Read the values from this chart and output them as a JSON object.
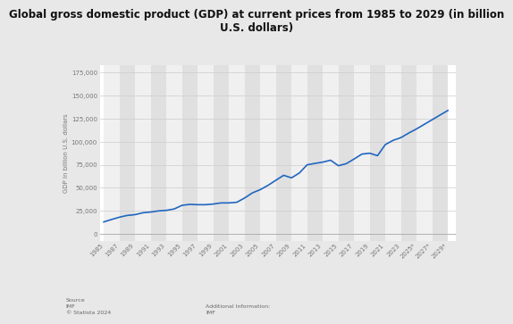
{
  "title": "Global gross domestic product (GDP) at current prices from 1985 to 2029 (in billion\nU.S. dollars)",
  "ylabel": "GDP in billion U.S. dollars",
  "years": [
    1985,
    1986,
    1987,
    1988,
    1989,
    1990,
    1991,
    1992,
    1993,
    1994,
    1995,
    1996,
    1997,
    1998,
    1999,
    2000,
    2001,
    2002,
    2003,
    2004,
    2005,
    2006,
    2007,
    2008,
    2009,
    2010,
    2011,
    2012,
    2013,
    2014,
    2015,
    2016,
    2017,
    2018,
    2019,
    2020,
    2021,
    2022,
    2023,
    2024,
    2025,
    2026,
    2027,
    2028,
    2029
  ],
  "gdp": [
    12985,
    15617,
    18123,
    20011,
    20886,
    22923,
    23690,
    24936,
    25563,
    27021,
    30984,
    32044,
    31665,
    31688,
    32390,
    33622,
    33604,
    34283,
    38897,
    44483,
    47993,
    52660,
    58199,
    63588,
    60800,
    66040,
    74991,
    76506,
    77878,
    79978,
    73986,
    76207,
    81232,
    86607,
    87555,
    84896,
    96948,
    101562,
    104500,
    109500,
    114000,
    119000,
    124000,
    129000,
    134000
  ],
  "line_color": "#2166c0",
  "fig_bg_color": "#e8e8e8",
  "plot_bg_color": "#ffffff",
  "grid_h_color": "#cccccc",
  "stripe_color_light": "#f0f0f0",
  "stripe_color_dark": "#e0e0e0",
  "yticks": [
    0,
    25000,
    50000,
    75000,
    100000,
    125000,
    150000,
    175000
  ],
  "xtick_labels": [
    "1985",
    "1987",
    "1989",
    "1991",
    "1993",
    "1995",
    "1997",
    "1999",
    "2001",
    "2003",
    "2005",
    "2007",
    "2009",
    "2011",
    "2013",
    "2015",
    "2017",
    "2019",
    "2021",
    "2023",
    "2025*",
    "2027*",
    "2029*"
  ],
  "xtick_years": [
    1985,
    1987,
    1989,
    1991,
    1993,
    1995,
    1997,
    1999,
    2001,
    2003,
    2005,
    2007,
    2009,
    2011,
    2013,
    2015,
    2017,
    2019,
    2021,
    2023,
    2025,
    2027,
    2029
  ],
  "source_text": "Source\nIMF\n© Statista 2024",
  "additional_text": "Additional Information:\nIMF",
  "title_fontsize": 8.5,
  "axis_label_fontsize": 5,
  "tick_fontsize": 5,
  "footer_fontsize": 4.5
}
